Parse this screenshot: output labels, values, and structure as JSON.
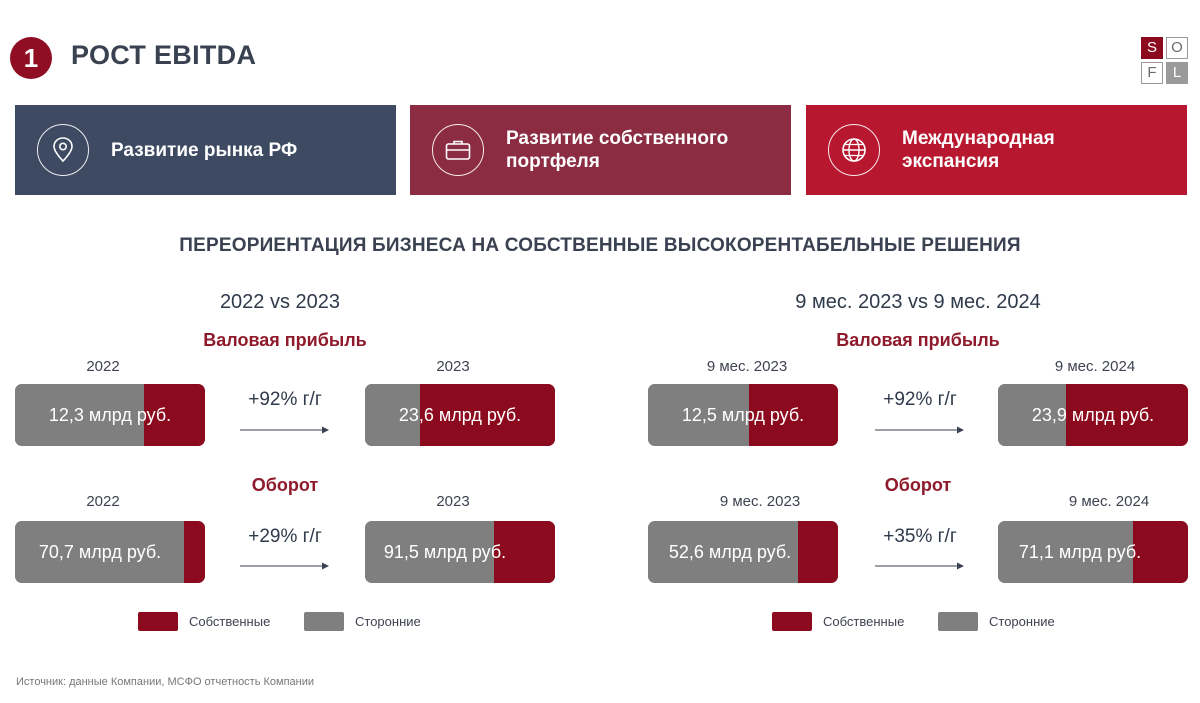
{
  "header": {
    "number": "1",
    "title": "РОСТ EBITDA",
    "logo_letters": [
      "S",
      "O",
      "F",
      "L"
    ]
  },
  "cards": [
    {
      "label_lines": [
        "Развитие рынка РФ"
      ],
      "icon": "location-pin-icon",
      "color": "#3d4a62"
    },
    {
      "label_lines": [
        "Развитие собственного",
        "портфеля"
      ],
      "icon": "briefcase-icon",
      "color": "#8b2c42"
    },
    {
      "label_lines": [
        "Международная",
        "экспансия"
      ],
      "icon": "globe-icon",
      "color": "#b8182f"
    }
  ],
  "section_heading": "ПЕРЕОРИЕНТАЦИЯ БИЗНЕСА НА СОБСТВЕННЫЕ ВЫСОКОРЕНТАБЕЛЬНЫЕ РЕШЕНИЯ",
  "colors": {
    "own": "#8c0a1e",
    "third_party": "#7f7f7f"
  },
  "panels": [
    {
      "title": "2022 vs 2023",
      "metrics": [
        {
          "name": "Валовая прибыль",
          "growth": "+92% г/г",
          "bars": [
            {
              "period": "2022",
              "value": "12,3 млрд руб.",
              "own_share": 0.32
            },
            {
              "period": "2023",
              "value": "23,6 млрд руб.",
              "own_share": 0.71
            }
          ]
        },
        {
          "name": "Оборот",
          "growth": "+29% г/г",
          "bars": [
            {
              "period": "2022",
              "value": "70,7 млрд руб.",
              "own_share": 0.11
            },
            {
              "period": "2023",
              "value": "91,5 млрд руб.",
              "own_share": 0.32
            }
          ]
        }
      ],
      "legend": {
        "own": "Собственные",
        "third": "Сторонние"
      }
    },
    {
      "title": "9 мес. 2023 vs 9 мес. 2024",
      "metrics": [
        {
          "name": "Валовая прибыль",
          "growth": "+92% г/г",
          "bars": [
            {
              "period": "9 мес. 2023",
              "value": "12,5 млрд руб.",
              "own_share": 0.47
            },
            {
              "period": "9 мес. 2024",
              "value": "23,9 млрд руб.",
              "own_share": 0.64
            }
          ]
        },
        {
          "name": "Оборот",
          "growth": "+35% г/г",
          "bars": [
            {
              "period": "9 мес. 2023",
              "value": "52,6 млрд руб.",
              "own_share": 0.21
            },
            {
              "period": "9 мес. 2024",
              "value": "71,1 млрд руб.",
              "own_share": 0.29
            }
          ]
        }
      ],
      "legend": {
        "own": "Собственные",
        "third": "Сторонние"
      }
    }
  ],
  "footnote": "Источник: данные Компании, МСФО отчетность Компании"
}
